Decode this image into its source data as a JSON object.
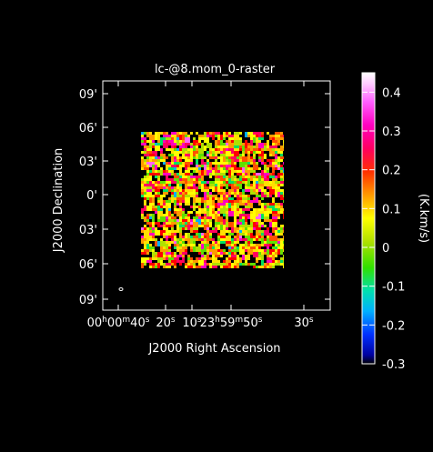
{
  "chart_data": {
    "type": "heatmap",
    "title": "lc-@8.mom_0-raster",
    "xlabel": "J2000 Right Ascension",
    "ylabel": "J2000 Declination",
    "x_ticks": [
      {
        "label": "00h00m40s"
      },
      {
        "label": "20s"
      },
      {
        "label": "10s"
      },
      {
        "label": "23h59m50s"
      },
      {
        "label": "30s"
      }
    ],
    "y_ticks": [
      "09'",
      "06'",
      "03'",
      "0'",
      "03'",
      "06'",
      "09'"
    ],
    "colorbar": {
      "label": "(K.km/s)",
      "ticks": [
        "0.4",
        "0.3",
        "0.2",
        "0.1",
        "0",
        "-0.1",
        "-0.2",
        "-0.3"
      ],
      "range": [
        -0.3,
        0.45
      ]
    },
    "grid": false,
    "beam_marker": true
  }
}
